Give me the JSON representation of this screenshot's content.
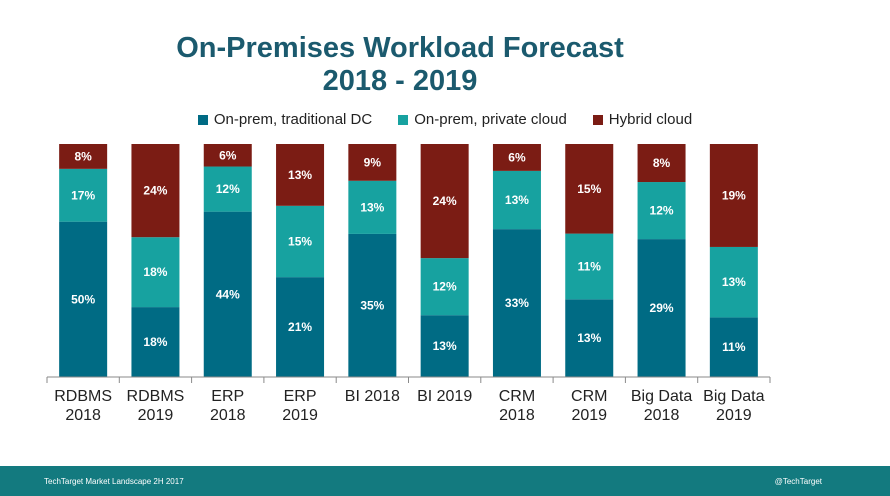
{
  "title_line1": "On-Premises Workload Forecast",
  "title_line2": "2018 - 2019",
  "colors": {
    "traditional": "#006b84",
    "private": "#17a2a0",
    "hybrid": "#7b1c14"
  },
  "chart_data": {
    "type": "bar",
    "stacked": true,
    "title": "On-Premises Workload Forecast 2018 - 2019",
    "legend_position": "top",
    "grid": false,
    "categories": [
      [
        "RDBMS",
        "2018"
      ],
      [
        "RDBMS",
        "2019"
      ],
      [
        "ERP",
        "2018"
      ],
      [
        "ERP",
        "2019"
      ],
      [
        "BI 2018"
      ],
      [
        "BI 2019"
      ],
      [
        "CRM",
        "2018"
      ],
      [
        "CRM",
        "2019"
      ],
      [
        "Big Data",
        "2018"
      ],
      [
        "Big Data",
        "2019"
      ]
    ],
    "series": [
      {
        "name": "On-prem, traditional DC",
        "key": "traditional",
        "values": [
          50,
          18,
          44,
          21,
          35,
          13,
          33,
          13,
          29,
          11
        ]
      },
      {
        "name": "On-prem, private cloud",
        "key": "private",
        "values": [
          17,
          18,
          12,
          15,
          13,
          12,
          13,
          11,
          12,
          13
        ]
      },
      {
        "name": "Hybrid cloud",
        "key": "hybrid",
        "values": [
          8,
          24,
          6,
          13,
          9,
          24,
          6,
          15,
          8,
          19
        ]
      }
    ],
    "value_suffix": "%"
  },
  "footer": {
    "left": "TechTarget Market Landscape 2H 2017",
    "right": "@TechTarget"
  }
}
